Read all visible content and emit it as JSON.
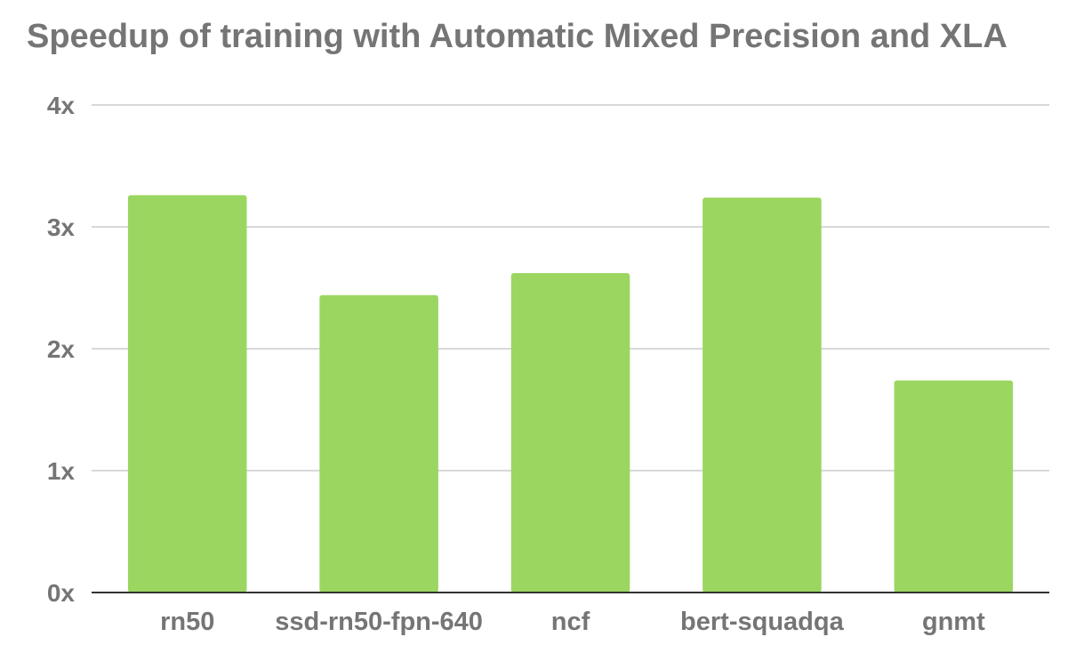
{
  "chart_data": {
    "type": "bar",
    "title": "Speedup of training with Automatic Mixed Precision and XLA",
    "xlabel": "",
    "ylabel": "",
    "categories": [
      "rn50",
      "ssd-rn50-fpn-640",
      "ncf",
      "bert-squadqa",
      "gnmt"
    ],
    "values": [
      3.26,
      2.44,
      2.62,
      3.24,
      1.74
    ],
    "ylim": [
      0,
      4
    ],
    "yticks": [
      {
        "value": 0,
        "label": "0x"
      },
      {
        "value": 1,
        "label": "1x"
      },
      {
        "value": 2,
        "label": "2x"
      },
      {
        "value": 3,
        "label": "3x"
      },
      {
        "value": 4,
        "label": "4x"
      }
    ],
    "grid": true,
    "legend": "none",
    "bar_color": "#9bd661",
    "grid_color": "#cccccc",
    "axis_color": "#333333",
    "text_color": "#757575"
  }
}
